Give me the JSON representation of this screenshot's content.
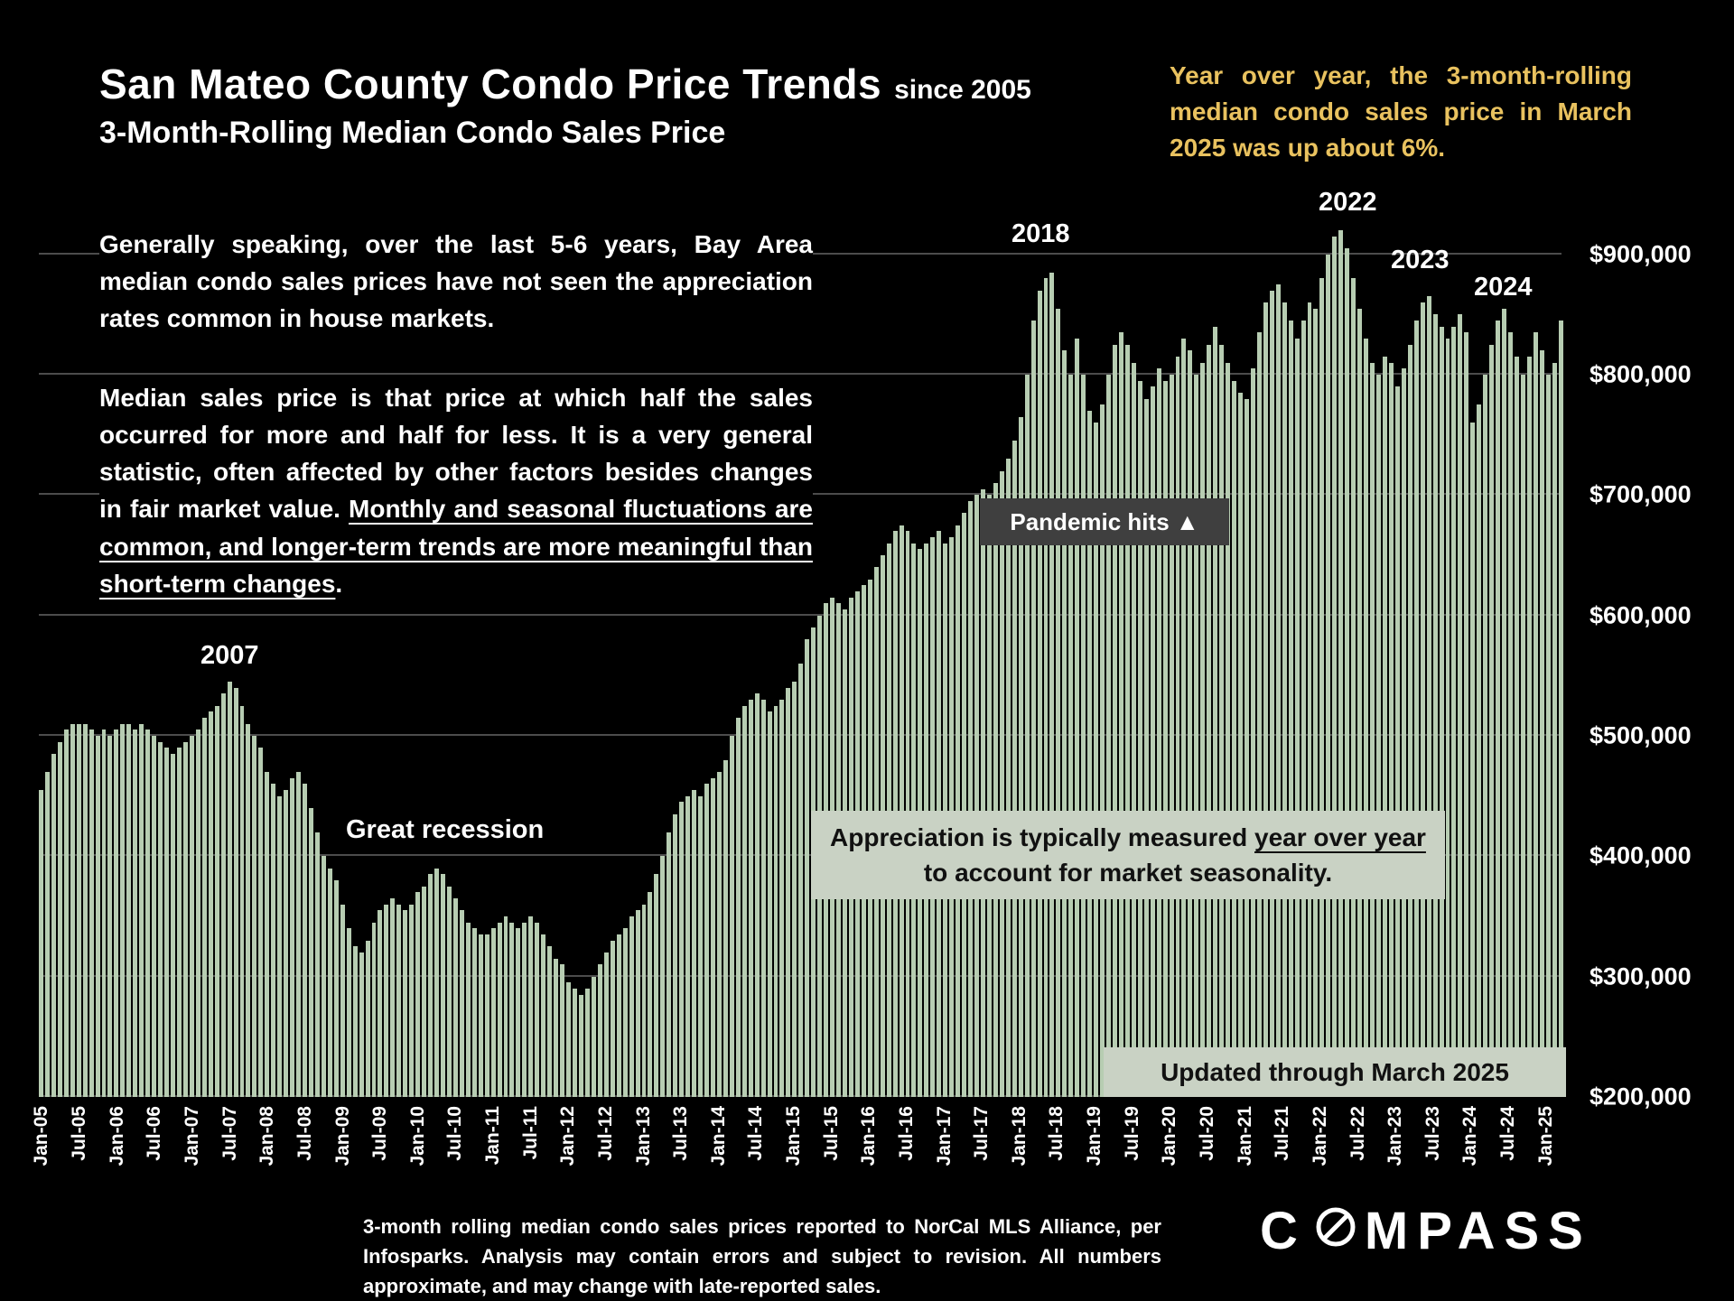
{
  "header": {
    "title_main": "San Mateo County Condo Price Trends",
    "title_suffix": "since 2005",
    "subtitle": "3-Month-Rolling Median Condo Sales Price",
    "highlight_note": "Year over year, the 3-month-rolling median condo sales price in March 2025 was up about 6%."
  },
  "paragraphs": {
    "p1": "Generally speaking, over the last 5-6 years, Bay Area median condo sales prices have not seen the appreciation rates common in house markets.",
    "p2_normal": "Median sales price is that price at which half the sales occurred for more and half for less. It is a very general statistic, often affected by other factors besides changes in fair market value. ",
    "p2_underlined": "Monthly and seasonal fluctuations are common, and longer-term trends are more meaningful than short-term changes",
    "p2_period": "."
  },
  "annotations": {
    "y2007": "2007",
    "great_recession": "Great recession",
    "y2018": "2018",
    "y2022": "2022",
    "y2023": "2023",
    "y2024": "2024",
    "pandemic": "Pandemic hits ▲",
    "appreciation_pre": "Appreciation is typically measured ",
    "appreciation_underlined": "year over year",
    "appreciation_post": " to account for market seasonality.",
    "updated": "Updated through March 2025"
  },
  "footer": {
    "note": "3-month rolling median condo sales prices reported to NorCal MLS Alliance, per Infosparks. Analysis may contain errors and subject to revision. All numbers approximate, and may change with late-reported sales.",
    "brand": "COMPASS",
    "brand_left": "C",
    "brand_right": "MPASS"
  },
  "colors": {
    "background": "#000000",
    "bar": "#b7cdb2",
    "highlight_text": "#e9c25f",
    "box_light": "#c9d2c4",
    "box_dark": "#3f3f3f",
    "gridline": "#4c4c4c",
    "text": "#ffffff"
  },
  "chart_data": {
    "type": "bar",
    "title": "San Mateo County Condo Price Trends since 2005",
    "subtitle": "3-Month-Rolling Median Condo Sales Price",
    "unit": "USD thousands",
    "frequency": "monthly",
    "x_start": "Jan-2005",
    "x_end": "Mar-2025",
    "grid": true,
    "legend": false,
    "y_axis": {
      "min": 200,
      "max": 950,
      "gridline_step": 100,
      "ticks": [
        {
          "label": "$900,000",
          "value": 900
        },
        {
          "label": "$800,000",
          "value": 800
        },
        {
          "label": "$700,000",
          "value": 700
        },
        {
          "label": "$600,000",
          "value": 600
        },
        {
          "label": "$500,000",
          "value": 500
        },
        {
          "label": "$400,000",
          "value": 400
        },
        {
          "label": "$300,000",
          "value": 300
        },
        {
          "label": "$200,000",
          "value": 200
        }
      ]
    },
    "x_tick_every": 6,
    "x_tick_labels": [
      "Jan-05",
      "Jul-05",
      "Jan-06",
      "Jul-06",
      "Jan-07",
      "Jul-07",
      "Jan-08",
      "Jul-08",
      "Jan-09",
      "Jul-09",
      "Jan-10",
      "Jul-10",
      "Jan-11",
      "Jul-11",
      "Jan-12",
      "Jul-12",
      "Jan-13",
      "Jul-13",
      "Jan-14",
      "Jul-14",
      "Jan-15",
      "Jul-15",
      "Jan-16",
      "Jul-16",
      "Jan-17",
      "Jul-17",
      "Jan-18",
      "Jul-18",
      "Jan-19",
      "Jul-19",
      "Jan-20",
      "Jul-20",
      "Jan-21",
      "Jul-21",
      "Jan-22",
      "Jul-22",
      "Jan-23",
      "Jul-23",
      "Jan-24",
      "Jul-24",
      "Jan-25"
    ],
    "values_usd_thousands": [
      455,
      470,
      485,
      495,
      505,
      510,
      510,
      510,
      505,
      500,
      505,
      500,
      505,
      510,
      510,
      505,
      510,
      505,
      500,
      495,
      490,
      485,
      490,
      495,
      500,
      505,
      515,
      520,
      525,
      535,
      545,
      540,
      525,
      510,
      500,
      490,
      470,
      460,
      450,
      455,
      465,
      470,
      460,
      440,
      420,
      400,
      390,
      380,
      360,
      340,
      325,
      320,
      330,
      345,
      355,
      360,
      365,
      360,
      355,
      360,
      370,
      375,
      385,
      390,
      385,
      375,
      365,
      355,
      345,
      340,
      335,
      335,
      340,
      345,
      350,
      345,
      340,
      345,
      350,
      345,
      335,
      325,
      315,
      310,
      295,
      290,
      285,
      290,
      300,
      310,
      320,
      330,
      335,
      340,
      350,
      355,
      360,
      370,
      385,
      400,
      420,
      435,
      445,
      450,
      455,
      450,
      460,
      465,
      470,
      480,
      500,
      515,
      525,
      530,
      535,
      530,
      520,
      525,
      530,
      540,
      545,
      560,
      580,
      590,
      600,
      610,
      615,
      610,
      605,
      615,
      620,
      625,
      630,
      640,
      650,
      660,
      670,
      675,
      670,
      660,
      655,
      660,
      665,
      670,
      660,
      665,
      675,
      685,
      695,
      700,
      705,
      700,
      710,
      720,
      730,
      745,
      765,
      800,
      845,
      870,
      880,
      885,
      855,
      820,
      800,
      830,
      800,
      770,
      760,
      775,
      800,
      825,
      835,
      825,
      810,
      795,
      780,
      790,
      805,
      795,
      800,
      815,
      830,
      820,
      800,
      810,
      825,
      840,
      825,
      810,
      795,
      785,
      780,
      805,
      835,
      860,
      870,
      875,
      860,
      845,
      830,
      845,
      860,
      855,
      880,
      900,
      915,
      920,
      905,
      880,
      855,
      830,
      810,
      800,
      815,
      810,
      790,
      805,
      825,
      845,
      860,
      865,
      850,
      840,
      830,
      840,
      850,
      835,
      760,
      775,
      800,
      825,
      845,
      855,
      835,
      815,
      800,
      815,
      835,
      820,
      800,
      810,
      845
    ]
  }
}
